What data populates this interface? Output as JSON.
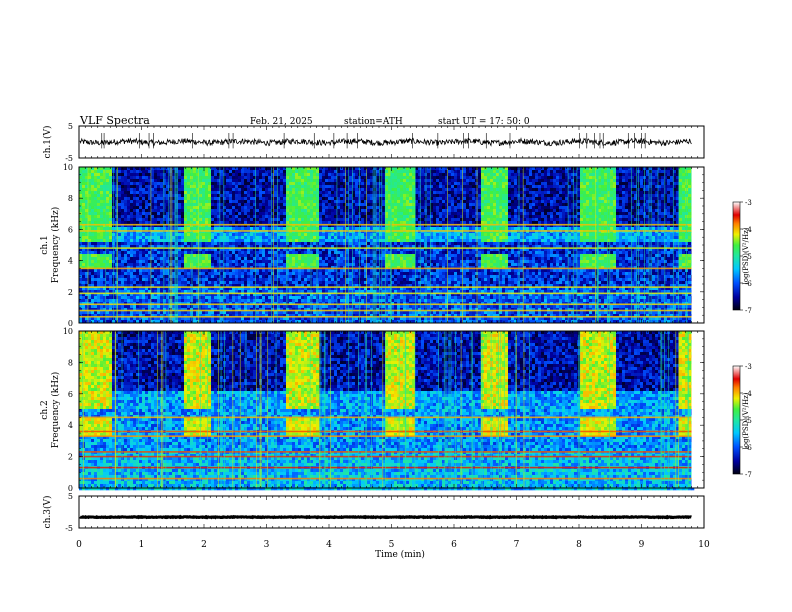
{
  "header": {
    "title": "VLF  Spectra",
    "date": "Feb. 21, 2025",
    "station": "station=ATH",
    "start_ut": "start  UT  =   17: 50: 0"
  },
  "chart_data": [
    {
      "type": "line",
      "ylabel": "ch.1(V)",
      "ylim": [
        -5,
        5
      ],
      "yticks": [
        "5",
        "-5"
      ],
      "xlim": [
        0,
        10
      ],
      "baseline_v": 0.0,
      "noise_v": 0.9,
      "color": "#000000"
    },
    {
      "type": "heatmap",
      "ylabel_top": "ch.1",
      "ylabel": "Frequency (kHz)",
      "ylim": [
        0,
        10
      ],
      "yticks": [
        "0",
        "2",
        "4",
        "6",
        "8",
        "10"
      ],
      "xlim": [
        0,
        10
      ],
      "colorbar": {
        "label": "log(PSD)(V²/Hz)",
        "range": [
          -7,
          -3
        ],
        "ticks": [
          "-3",
          "-4",
          "-5",
          "-6",
          "-7"
        ]
      },
      "green_blocks_min": [
        [
          0.0,
          0.5
        ],
        [
          1.65,
          2.1
        ],
        [
          3.3,
          3.8
        ],
        [
          4.85,
          5.35
        ],
        [
          6.4,
          6.85
        ],
        [
          8.0,
          8.55
        ],
        [
          9.6,
          9.8
        ]
      ],
      "line_bands_khz": [
        0.4,
        0.8,
        1.2,
        1.9,
        2.3,
        3.5,
        4.8,
        5.9,
        6.3
      ],
      "level_low_log": -6.2,
      "level_high_log": -4.8
    },
    {
      "type": "heatmap",
      "ylabel_top": "ch.2",
      "ylabel": "Frequency (kHz)",
      "ylim": [
        0,
        10
      ],
      "yticks": [
        "0",
        "2",
        "4",
        "6",
        "8",
        "10"
      ],
      "xlim": [
        0,
        10
      ],
      "colorbar": {
        "label": "log(PSD)(V²/Hz)",
        "range": [
          -7,
          -3
        ],
        "ticks": [
          "-3",
          "-4",
          "-5",
          "-6",
          "-7"
        ]
      },
      "green_blocks_min": [
        [
          0.0,
          0.5
        ],
        [
          1.65,
          2.1
        ],
        [
          3.3,
          3.8
        ],
        [
          4.85,
          5.35
        ],
        [
          6.4,
          6.85
        ],
        [
          8.0,
          8.55
        ],
        [
          9.6,
          9.8
        ]
      ],
      "line_bands_khz": [
        0.6,
        1.3,
        2.0,
        2.3,
        3.3,
        3.6,
        4.5
      ],
      "level_low_log": -5.7,
      "level_high_log": -4.4
    },
    {
      "type": "line",
      "ylabel": "ch.3(V)",
      "ylim": [
        -5,
        5
      ],
      "yticks": [
        "5",
        "-5"
      ],
      "xlim": [
        0,
        10
      ],
      "baseline_v": -1.6,
      "noise_v": 0.1,
      "color": "#000000"
    }
  ],
  "x_axis": {
    "label": "Time  (min)",
    "ticks": [
      "0",
      "1",
      "2",
      "3",
      "4",
      "5",
      "6",
      "7",
      "8",
      "9",
      "10"
    ]
  }
}
